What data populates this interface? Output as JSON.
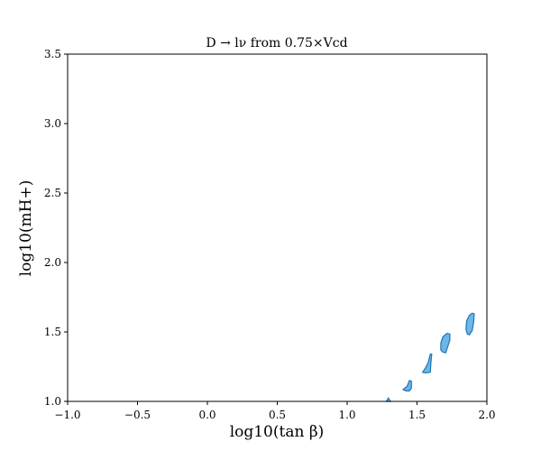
{
  "chart_data": {
    "type": "area",
    "title": "D → lν from 0.75×Vcd",
    "xlabel": "log10(tan β)",
    "ylabel": "log10(mH+)",
    "xlim": [
      -1.0,
      2.0
    ],
    "ylim": [
      1.0,
      3.5
    ],
    "x_ticks": [
      "−1.0",
      "−0.5",
      "0.0",
      "0.5",
      "1.0",
      "1.5",
      "2.0"
    ],
    "y_ticks": [
      "1.0",
      "1.5",
      "2.0",
      "2.5",
      "3.0",
      "3.5"
    ],
    "grid": false,
    "fill_color": "#6cb6e8",
    "edge_color": "#1f77b4",
    "regions": [
      {
        "points": [
          [
            1.28,
            1.0
          ],
          [
            1.295,
            1.025
          ],
          [
            1.31,
            1.0
          ]
        ]
      },
      {
        "points": [
          [
            1.4,
            1.085
          ],
          [
            1.43,
            1.11
          ],
          [
            1.445,
            1.15
          ],
          [
            1.46,
            1.145
          ],
          [
            1.46,
            1.095
          ],
          [
            1.445,
            1.075
          ],
          [
            1.42,
            1.075
          ],
          [
            1.4,
            1.085
          ]
        ]
      },
      {
        "points": [
          [
            1.54,
            1.21
          ],
          [
            1.56,
            1.24
          ],
          [
            1.58,
            1.28
          ],
          [
            1.595,
            1.34
          ],
          [
            1.605,
            1.34
          ],
          [
            1.6,
            1.285
          ],
          [
            1.595,
            1.21
          ],
          [
            1.56,
            1.205
          ],
          [
            1.54,
            1.21
          ]
        ]
      },
      {
        "points": [
          [
            1.67,
            1.37
          ],
          [
            1.67,
            1.42
          ],
          [
            1.685,
            1.465
          ],
          [
            1.715,
            1.49
          ],
          [
            1.735,
            1.485
          ],
          [
            1.735,
            1.44
          ],
          [
            1.72,
            1.395
          ],
          [
            1.705,
            1.35
          ],
          [
            1.685,
            1.355
          ],
          [
            1.67,
            1.37
          ]
        ]
      },
      {
        "points": [
          [
            1.85,
            1.52
          ],
          [
            1.855,
            1.58
          ],
          [
            1.875,
            1.62
          ],
          [
            1.895,
            1.635
          ],
          [
            1.91,
            1.63
          ],
          [
            1.905,
            1.57
          ],
          [
            1.895,
            1.51
          ],
          [
            1.875,
            1.48
          ],
          [
            1.86,
            1.485
          ],
          [
            1.85,
            1.52
          ]
        ]
      }
    ]
  }
}
